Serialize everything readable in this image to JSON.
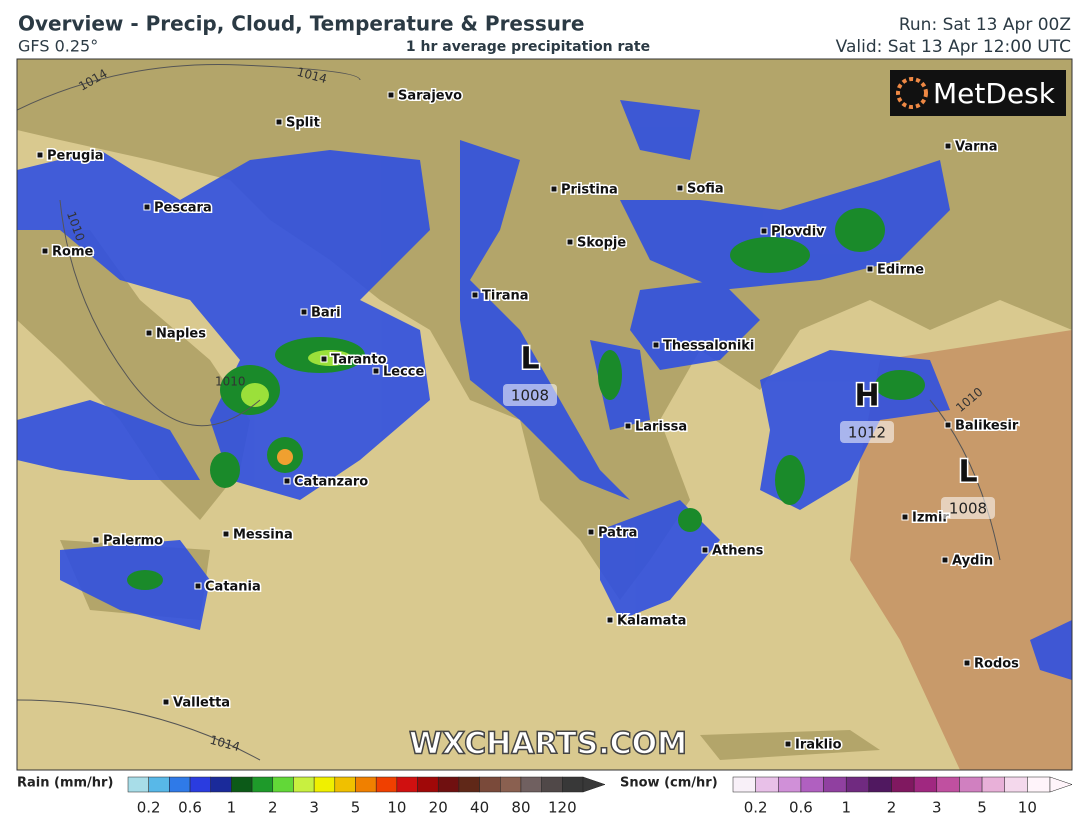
{
  "header": {
    "title": "Overview - Precip, Cloud, Temperature & Pressure",
    "model": "GFS 0.25°",
    "subtitle": "1 hr average precipitation rate",
    "run": "Run: Sat 13 Apr 00Z",
    "valid": "Valid: Sat 13 Apr 12:00 UTC"
  },
  "logo": "MetDesk",
  "watermark": "WXCHARTS.COM",
  "map": {
    "cities": [
      "Sarajevo",
      "Split",
      "Perugia",
      "Pescara",
      "Rome",
      "Naples",
      "Bari",
      "Taranto",
      "Lecce",
      "Catanzaro",
      "Messina",
      "Palermo",
      "Catania",
      "Valletta",
      "Pristina",
      "Sofia",
      "Varna",
      "Plovdiv",
      "Skopje",
      "Edirne",
      "Tirana",
      "Thessaloniki",
      "Larissa",
      "Balikesir",
      "Patra",
      "Athens",
      "Izmir",
      "Aydin",
      "Kalamata",
      "Rodos",
      "Iraklio"
    ],
    "pressure_centers": [
      {
        "symbol": "L",
        "value": "1008"
      },
      {
        "symbol": "H",
        "value": "1012"
      },
      {
        "symbol": "L",
        "value": "1008"
      }
    ],
    "isobar_labels": [
      "1014",
      "1014",
      "1010",
      "1010",
      "1014",
      "1010"
    ]
  },
  "legend": {
    "rain": {
      "label": "Rain (mm/hr)",
      "ticks": [
        "0.2",
        "0.6",
        "1",
        "2",
        "3",
        "5",
        "10",
        "20",
        "40",
        "80",
        "120"
      ]
    },
    "snow": {
      "label": "Snow (cm/hr)",
      "ticks": [
        "0.2",
        "0.6",
        "1",
        "2",
        "3",
        "5",
        "10"
      ]
    }
  }
}
